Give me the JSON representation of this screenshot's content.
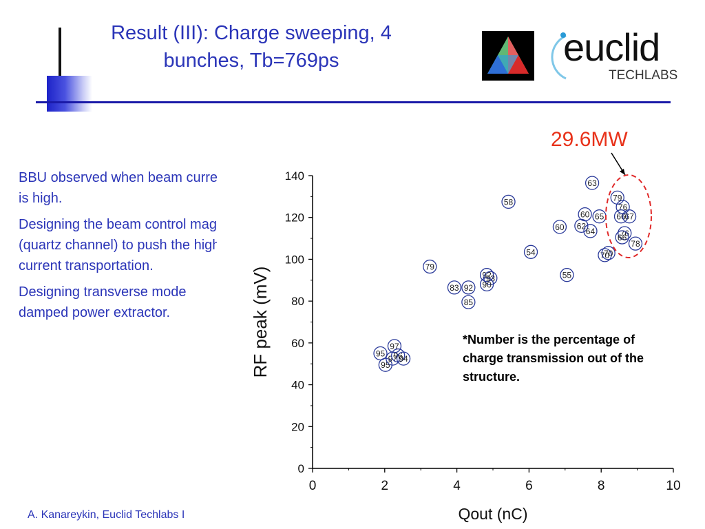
{
  "slide": {
    "title_line1": "Result (III): Charge sweeping, 4",
    "title_line2": "bunches, Tb=769ps",
    "bullets": [
      "BBU observed when beam current is high.",
      "Designing the beam control magnet (quartz channel) to push the high current transportation.",
      "Designing transverse mode damped power extractor."
    ],
    "footer": "A. Kanareykin, Euclid Techlabs I",
    "logo_text": "euclid",
    "logo_subtext": "TECHLABS",
    "annotation": "29.6MW",
    "note": "*Number is the percentage of charge transmission out of the structure."
  },
  "colors": {
    "title": "#2b35b8",
    "annotation": "#e8321a",
    "marker": "#2a3a9a",
    "rule": "#1a1aa8"
  },
  "chart_data": {
    "type": "scatter",
    "xlabel": "Qout (nC)",
    "ylabel": "RF peak (mV)",
    "xlim": [
      0,
      10
    ],
    "ylim": [
      0,
      140
    ],
    "xticks": [
      "0",
      "2",
      "4",
      "6",
      "8",
      "10"
    ],
    "yticks": [
      "0",
      "20",
      "40",
      "60",
      "80",
      "100",
      "120",
      "140"
    ],
    "grid": false,
    "points": [
      {
        "x": 1.88,
        "y": 55,
        "label": "95"
      },
      {
        "x": 2.02,
        "y": 49.5,
        "label": "95"
      },
      {
        "x": 2.27,
        "y": 58.5,
        "label": "97"
      },
      {
        "x": 2.22,
        "y": 52.5,
        "label": "97"
      },
      {
        "x": 2.37,
        "y": 54,
        "label": "96"
      },
      {
        "x": 2.52,
        "y": 52.5,
        "label": "94"
      },
      {
        "x": 3.25,
        "y": 96.5,
        "label": "79"
      },
      {
        "x": 3.93,
        "y": 86.5,
        "label": "83"
      },
      {
        "x": 4.32,
        "y": 86.5,
        "label": "92"
      },
      {
        "x": 4.32,
        "y": 79.5,
        "label": "85"
      },
      {
        "x": 4.83,
        "y": 92.5,
        "label": "92"
      },
      {
        "x": 4.93,
        "y": 91,
        "label": "93"
      },
      {
        "x": 4.83,
        "y": 88,
        "label": "90"
      },
      {
        "x": 5.43,
        "y": 127.5,
        "label": "58"
      },
      {
        "x": 6.05,
        "y": 103.5,
        "label": "54"
      },
      {
        "x": 6.85,
        "y": 115.5,
        "label": "60"
      },
      {
        "x": 7.05,
        "y": 92.5,
        "label": "55"
      },
      {
        "x": 7.45,
        "y": 116,
        "label": "62"
      },
      {
        "x": 7.55,
        "y": 121.5,
        "label": "60"
      },
      {
        "x": 7.7,
        "y": 113.5,
        "label": "64"
      },
      {
        "x": 7.75,
        "y": 136.5,
        "label": "63"
      },
      {
        "x": 7.95,
        "y": 120.5,
        "label": "65"
      },
      {
        "x": 8.1,
        "y": 102,
        "label": "70"
      },
      {
        "x": 8.2,
        "y": 103,
        "label": "70"
      },
      {
        "x": 8.45,
        "y": 129.5,
        "label": "79"
      },
      {
        "x": 8.6,
        "y": 125,
        "label": "76"
      },
      {
        "x": 8.55,
        "y": 120.5,
        "label": "66"
      },
      {
        "x": 8.78,
        "y": 120.5,
        "label": "67"
      },
      {
        "x": 8.65,
        "y": 112.5,
        "label": "76"
      },
      {
        "x": 8.58,
        "y": 110.5,
        "label": "66"
      },
      {
        "x": 8.95,
        "y": 107.5,
        "label": "78"
      }
    ]
  }
}
